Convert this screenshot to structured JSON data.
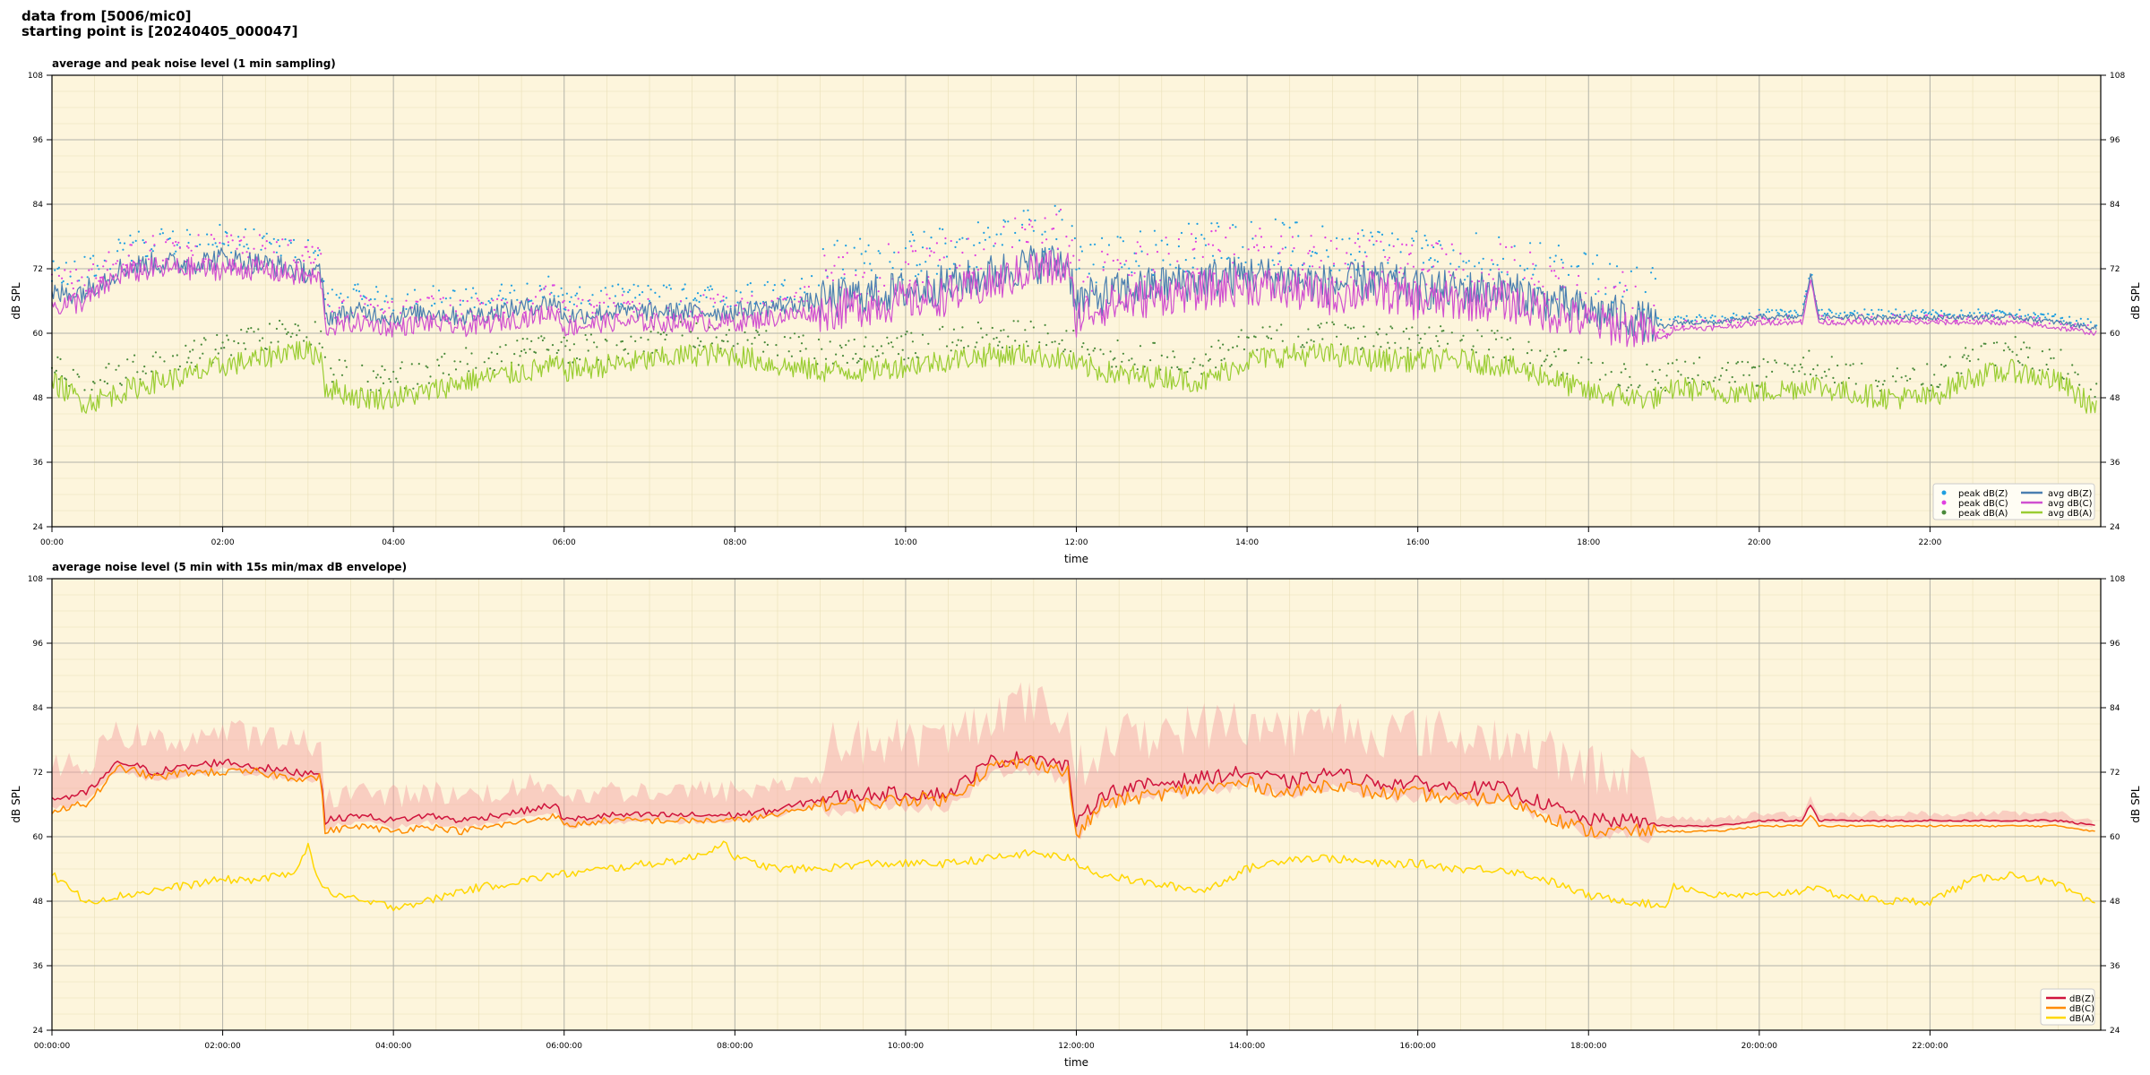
{
  "header": {
    "line1": "data from [5006/mic0]",
    "line2": "starting point is [20240405_000047]"
  },
  "colors": {
    "background": "#fdf5dc",
    "peak_z": "#1f9fe0",
    "peak_c": "#e040e0",
    "peak_a": "#4a8a3a",
    "avg_z": "#4a7fb0",
    "avg_c": "#d050d0",
    "avg_a": "#9acd32",
    "dbz": "#d0143c",
    "dbc": "#ff8c00",
    "dba": "#ffd700",
    "envelope": "#f4a0a0"
  },
  "chart_data": [
    {
      "type": "line",
      "title": "average and peak noise level (1 min sampling)",
      "xlabel": "time",
      "ylabel": "dB SPL",
      "ylabel_right": "dB SPL",
      "xlim": [
        0,
        24
      ],
      "ylim": [
        24,
        108
      ],
      "yticks": [
        24,
        36,
        48,
        60,
        72,
        84,
        96,
        108
      ],
      "xticks": [
        "00:00",
        "02:00",
        "04:00",
        "06:00",
        "08:00",
        "10:00",
        "12:00",
        "14:00",
        "16:00",
        "18:00",
        "20:00",
        "22:00"
      ],
      "grid": true,
      "legend_position": "lower-right",
      "legend": [
        "peak dB(Z)",
        "peak dB(C)",
        "peak dB(A)",
        "avg dB(Z)",
        "avg dB(C)",
        "avg dB(A)"
      ],
      "x_unit": "hour",
      "series": [
        {
          "name": "avg dB(Z)",
          "style": "line",
          "x": [
            0,
            0.4,
            0.8,
            1.2,
            1.6,
            2.0,
            2.4,
            2.8,
            3.15,
            3.2,
            3.6,
            4.0,
            4.4,
            4.8,
            5.2,
            5.6,
            5.9,
            6.0,
            6.5,
            7.0,
            7.5,
            8.0,
            8.5,
            9.0,
            9.5,
            10.0,
            10.5,
            11.0,
            11.5,
            11.9,
            12.0,
            12.3,
            12.6,
            13.0,
            13.5,
            14.0,
            14.5,
            15.0,
            15.5,
            16.0,
            16.5,
            17.0,
            17.5,
            18.0,
            18.5,
            18.9,
            19.0,
            19.5,
            20.0,
            20.5,
            20.6,
            20.7,
            21.0,
            21.5,
            22.0,
            22.5,
            23.0,
            23.5,
            23.95
          ],
          "y": [
            67,
            68,
            72,
            73,
            73,
            74,
            73,
            72,
            71,
            63,
            64,
            63,
            64,
            63,
            64,
            65,
            66,
            63,
            64,
            64,
            64,
            64,
            65,
            66,
            67,
            68,
            69,
            71,
            73,
            73,
            66,
            67,
            68,
            69,
            70,
            71,
            70,
            69,
            70,
            68,
            68,
            68,
            66,
            64,
            63,
            61,
            62,
            62,
            63,
            63,
            71,
            63,
            63,
            63,
            63,
            63,
            63,
            62,
            61
          ]
        },
        {
          "name": "avg dB(C)",
          "style": "line",
          "x": [
            0,
            0.4,
            0.8,
            1.2,
            1.6,
            2.0,
            2.4,
            2.8,
            3.15,
            3.2,
            3.6,
            4.0,
            4.4,
            4.8,
            5.2,
            5.6,
            5.9,
            6.0,
            6.5,
            7.0,
            7.5,
            8.0,
            8.5,
            9.0,
            9.5,
            10.0,
            10.5,
            11.0,
            11.5,
            11.9,
            12.0,
            12.3,
            12.6,
            13.0,
            13.5,
            14.0,
            14.5,
            15.0,
            15.5,
            16.0,
            16.5,
            17.0,
            17.5,
            18.0,
            18.5,
            18.9,
            19.0,
            19.5,
            20.0,
            20.5,
            20.6,
            20.7,
            21.0,
            21.5,
            22.0,
            22.5,
            23.0,
            23.5,
            23.95
          ],
          "y": [
            65,
            66,
            71,
            72,
            72,
            72,
            72,
            71,
            70,
            61,
            62,
            61,
            62,
            61,
            62,
            63,
            64,
            61,
            62,
            62,
            62,
            62,
            63,
            64,
            65,
            66,
            67,
            69,
            72,
            72,
            63,
            65,
            66,
            67,
            68,
            69,
            68,
            67,
            68,
            66,
            66,
            66,
            64,
            62,
            61,
            59,
            61,
            61,
            62,
            62,
            70,
            62,
            62,
            62,
            62,
            62,
            62,
            61,
            60
          ]
        },
        {
          "name": "avg dB(A)",
          "style": "line",
          "x": [
            0,
            0.4,
            0.8,
            1.2,
            1.6,
            2.0,
            2.4,
            2.8,
            3.15,
            3.2,
            3.6,
            4.0,
            4.4,
            4.8,
            5.2,
            5.6,
            5.9,
            6.0,
            6.5,
            7.0,
            7.5,
            8.0,
            8.5,
            9.0,
            9.5,
            10.0,
            10.5,
            11.0,
            11.5,
            11.9,
            12.0,
            12.3,
            12.6,
            13.0,
            13.5,
            14.0,
            14.5,
            15.0,
            15.5,
            16.0,
            16.5,
            17.0,
            17.5,
            18.0,
            18.5,
            18.9,
            19.0,
            19.5,
            20.0,
            20.5,
            20.6,
            20.7,
            21.0,
            21.5,
            22.0,
            22.5,
            23.0,
            23.5,
            23.95
          ],
          "y": [
            51,
            47,
            49,
            51,
            52,
            54,
            55,
            57,
            56,
            50,
            48,
            48,
            49,
            51,
            52,
            53,
            54,
            53,
            54,
            55,
            56,
            56,
            54,
            53,
            53,
            54,
            55,
            56,
            56,
            55,
            54,
            53,
            52,
            52,
            51,
            55,
            56,
            56,
            55,
            55,
            55,
            54,
            52,
            49,
            48,
            48,
            50,
            49,
            49,
            50,
            51,
            50,
            49,
            48,
            48,
            52,
            53,
            51,
            46
          ]
        },
        {
          "name": "peak dB(Z)",
          "style": "points",
          "band": [
            62,
            84
          ]
        },
        {
          "name": "peak dB(C)",
          "style": "points",
          "band": [
            60,
            82
          ]
        },
        {
          "name": "peak dB(A)",
          "style": "points",
          "band": [
            46,
            62
          ]
        }
      ]
    },
    {
      "type": "line",
      "title": "average noise level (5 min with 15s min/max dB envelope)",
      "xlabel": "time",
      "ylabel": "dB SPL",
      "ylabel_right": "dB SPL",
      "xlim": [
        0,
        24
      ],
      "ylim": [
        24,
        108
      ],
      "yticks": [
        24,
        36,
        48,
        60,
        72,
        84,
        96,
        108
      ],
      "xticks": [
        "00:00:00",
        "02:00:00",
        "04:00:00",
        "06:00:00",
        "08:00:00",
        "10:00:00",
        "12:00:00",
        "14:00:00",
        "16:00:00",
        "18:00:00",
        "20:00:00",
        "22:00:00"
      ],
      "grid": true,
      "legend_position": "lower-right",
      "legend": [
        "dB(Z)",
        "dB(C)",
        "dB(A)"
      ],
      "x_unit": "hour",
      "series": [
        {
          "name": "dB(Z)",
          "style": "line",
          "x": [
            0,
            0.4,
            0.8,
            1.2,
            1.6,
            2.0,
            2.4,
            2.8,
            3.15,
            3.2,
            3.6,
            4.0,
            4.4,
            4.8,
            5.2,
            5.6,
            5.9,
            6.0,
            6.5,
            7.0,
            7.5,
            8.0,
            8.5,
            9.0,
            9.5,
            10.0,
            10.5,
            11.0,
            11.5,
            11.9,
            12.0,
            12.3,
            12.6,
            13.0,
            13.5,
            14.0,
            14.5,
            15.0,
            15.5,
            16.0,
            16.5,
            17.0,
            17.5,
            18.0,
            18.5,
            18.9,
            19.0,
            19.5,
            20.0,
            20.5,
            20.6,
            20.7,
            21.0,
            21.5,
            22.0,
            22.5,
            23.0,
            23.5,
            23.95
          ],
          "y": [
            67,
            68,
            74,
            72,
            73,
            74,
            73,
            72,
            72,
            63,
            64,
            63,
            64,
            63,
            64,
            65,
            66,
            63,
            64,
            64,
            64,
            64,
            65,
            67,
            68,
            68,
            68,
            74,
            75,
            73,
            62,
            68,
            69,
            70,
            71,
            72,
            70,
            72,
            70,
            70,
            69,
            69,
            66,
            63,
            63,
            62,
            62,
            62,
            63,
            63,
            66,
            63,
            63,
            63,
            63,
            63,
            63,
            63,
            62
          ]
        },
        {
          "name": "dB(C)",
          "style": "line",
          "x": [
            0,
            0.4,
            0.8,
            1.2,
            1.6,
            2.0,
            2.4,
            2.8,
            3.15,
            3.2,
            3.6,
            4.0,
            4.4,
            4.8,
            5.2,
            5.6,
            5.9,
            6.0,
            6.5,
            7.0,
            7.5,
            8.0,
            8.5,
            9.0,
            9.5,
            10.0,
            10.5,
            11.0,
            11.5,
            11.9,
            12.0,
            12.3,
            12.6,
            13.0,
            13.5,
            14.0,
            14.5,
            15.0,
            15.5,
            16.0,
            16.5,
            17.0,
            17.5,
            18.0,
            18.5,
            18.9,
            19.0,
            19.5,
            20.0,
            20.5,
            20.6,
            20.7,
            21.0,
            21.5,
            22.0,
            22.5,
            23.0,
            23.5,
            23.95
          ],
          "y": [
            65,
            66,
            73,
            71,
            72,
            72,
            72,
            71,
            71,
            61,
            62,
            61,
            62,
            61,
            62,
            63,
            64,
            62,
            63,
            63,
            63,
            63,
            64,
            66,
            66,
            67,
            67,
            73,
            74,
            72,
            60,
            66,
            67,
            68,
            69,
            70,
            68,
            70,
            68,
            68,
            67,
            67,
            64,
            61,
            61,
            61,
            61,
            61,
            62,
            62,
            64,
            62,
            62,
            62,
            62,
            62,
            62,
            62,
            61
          ]
        },
        {
          "name": "dB(A)",
          "style": "line",
          "x": [
            0,
            0.4,
            0.8,
            1.2,
            1.6,
            2.0,
            2.4,
            2.8,
            3.0,
            3.15,
            3.2,
            3.6,
            4.0,
            4.4,
            4.8,
            5.2,
            5.6,
            5.9,
            6.0,
            6.5,
            7.0,
            7.5,
            7.9,
            8.0,
            8.5,
            9.0,
            9.5,
            10.0,
            10.5,
            11.0,
            11.5,
            11.9,
            12.0,
            12.3,
            12.6,
            13.0,
            13.5,
            14.0,
            14.5,
            15.0,
            15.5,
            16.0,
            16.5,
            17.0,
            17.5,
            18.0,
            18.5,
            18.9,
            19.0,
            19.5,
            20.0,
            20.5,
            20.6,
            20.7,
            21.0,
            21.5,
            22.0,
            22.5,
            23.0,
            23.5,
            23.95
          ],
          "y": [
            53,
            48,
            49,
            50,
            51,
            52,
            52,
            53,
            58,
            51,
            50,
            48,
            47,
            48,
            50,
            51,
            52,
            53,
            53,
            54,
            55,
            56,
            59,
            56,
            54,
            54,
            55,
            55,
            55,
            56,
            57,
            56,
            55,
            53,
            52,
            51,
            50,
            54,
            56,
            56,
            55,
            55,
            54,
            54,
            52,
            49,
            48,
            47,
            51,
            49,
            49,
            50,
            51,
            50,
            49,
            48,
            48,
            52,
            53,
            51,
            47
          ]
        },
        {
          "name": "15s min/max dB envelope",
          "style": "envelope",
          "band": [
            58,
            86
          ]
        }
      ]
    }
  ]
}
